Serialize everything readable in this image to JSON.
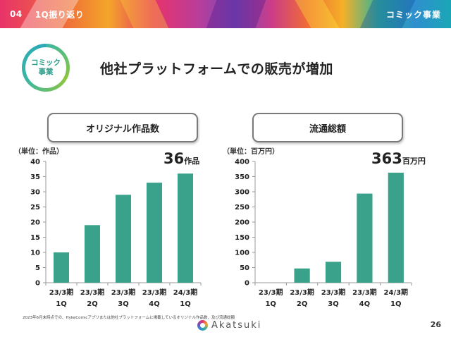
{
  "header": {
    "section_number": "04",
    "section_title": "1Q振り返り",
    "category": "コミック事業"
  },
  "badge": {
    "line1": "コミック",
    "line2": "事業"
  },
  "title": "他社プラットフォームでの販売が増加",
  "colors": {
    "bar": "#3aa18a",
    "badge": "#39b7a3",
    "axis": "#9a9a9a"
  },
  "left_panel": {
    "heading": "オリジナル作品数",
    "unit": "（単位：作品）",
    "total_value": "36",
    "total_unit": "作品"
  },
  "right_panel": {
    "heading": "流通総額",
    "unit": "（単位：百万円）",
    "total_value": "363",
    "total_unit": "百万円"
  },
  "chart_data": [
    {
      "type": "bar",
      "title": "オリジナル作品数",
      "categories": [
        [
          "23/3期",
          "1Q"
        ],
        [
          "23/3期",
          "2Q"
        ],
        [
          "23/3期",
          "3Q"
        ],
        [
          "23/3期",
          "4Q"
        ],
        [
          "24/3期",
          "1Q"
        ]
      ],
      "values": [
        10,
        19,
        29,
        33,
        36
      ],
      "ylim": [
        0,
        40
      ],
      "yticks": [
        0,
        5,
        10,
        15,
        20,
        25,
        30,
        35,
        40
      ],
      "ylabel": "（単位：作品）",
      "grid": false
    },
    {
      "type": "bar",
      "title": "流通総額",
      "categories": [
        [
          "23/3期",
          "1Q"
        ],
        [
          "23/3期",
          "2Q"
        ],
        [
          "23/3期",
          "3Q"
        ],
        [
          "23/3期",
          "4Q"
        ],
        [
          "24/3期",
          "1Q"
        ]
      ],
      "values": [
        0,
        47,
        69,
        294,
        363
      ],
      "ylim": [
        0,
        400
      ],
      "yticks": [
        0,
        50,
        100,
        150,
        200,
        250,
        300,
        350,
        400
      ],
      "ylabel": "（単位：百万円）",
      "grid": false
    }
  ],
  "footer": {
    "note": "2023年6月末時点での、HykeComicアプリまたは他社プラットフォームに掲載しているオリジナル作品数、及び流通総額",
    "logo": "Akatsuki",
    "page": "26"
  }
}
